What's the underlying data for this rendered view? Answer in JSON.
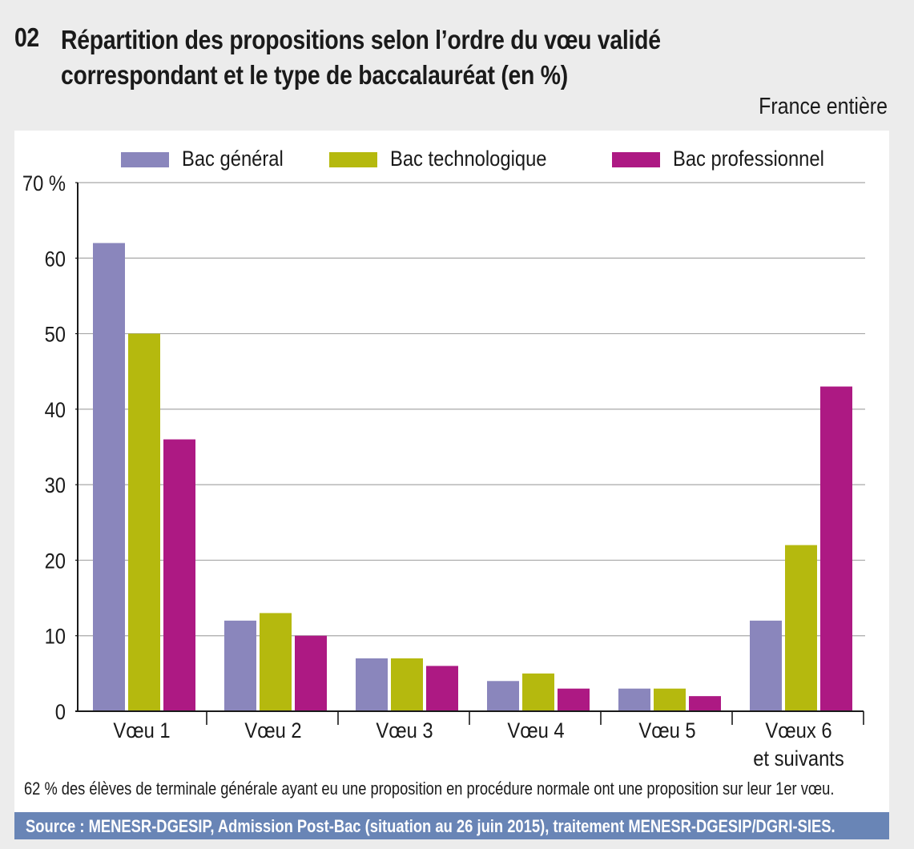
{
  "header": {
    "number": "02",
    "title_line1": "Répartition des propositions selon l’ordre du vœu validé",
    "title_line2": "correspondant et le type de baccalauréat (en %)",
    "scope": "France entière"
  },
  "colors": {
    "bac_general": "#8a86bc",
    "bac_technologique": "#b5b90e",
    "bac_professionnel": "#ad1983",
    "source_bar": "#6985b6",
    "gridline": "#a8a8a8",
    "axis": "#1a1a1a"
  },
  "chart_data": {
    "type": "bar",
    "title": "Répartition des propositions selon l’ordre du vœu validé correspondant et le type de baccalauréat (en %)",
    "xlabel": "",
    "ylabel": "",
    "categories": [
      "Vœu 1",
      "Vœu 2",
      "Vœu 3",
      "Vœu 4",
      "Vœu 5",
      "Vœux 6 et suivants"
    ],
    "category_label_lines": [
      [
        "Vœu 1"
      ],
      [
        "Vœu 2"
      ],
      [
        "Vœu 3"
      ],
      [
        "Vœu 4"
      ],
      [
        "Vœu 5"
      ],
      [
        "Vœux 6",
        "et suivants"
      ]
    ],
    "series": [
      {
        "name": "Bac général",
        "color": "#8a86bc",
        "values": [
          62,
          12,
          7,
          4,
          3,
          12
        ]
      },
      {
        "name": "Bac technologique",
        "color": "#b5b90e",
        "values": [
          50,
          13,
          7,
          5,
          3,
          22
        ]
      },
      {
        "name": "Bac professionnel",
        "color": "#ad1983",
        "values": [
          36,
          10,
          6,
          3,
          2,
          43
        ]
      }
    ],
    "ylim": [
      0,
      70
    ],
    "yticks": [
      0,
      10,
      20,
      30,
      40,
      50,
      60,
      70
    ],
    "ytick_labels": [
      "0",
      "10",
      "20",
      "30",
      "40",
      "50",
      "60",
      "70 %"
    ],
    "grid": true,
    "legend_position": "top"
  },
  "legend": [
    {
      "label": "Bac général"
    },
    {
      "label": "Bac technologique"
    },
    {
      "label": "Bac professionnel"
    }
  ],
  "note": "62 % des élèves de terminale générale ayant eu une proposition en procédure normale ont une proposition sur leur 1er vœu.",
  "source": "Source : MENESR-DGESIP, Admission Post-Bac (situation au 26 juin 2015), traitement MENESR-DGESIP/DGRI-SIES."
}
